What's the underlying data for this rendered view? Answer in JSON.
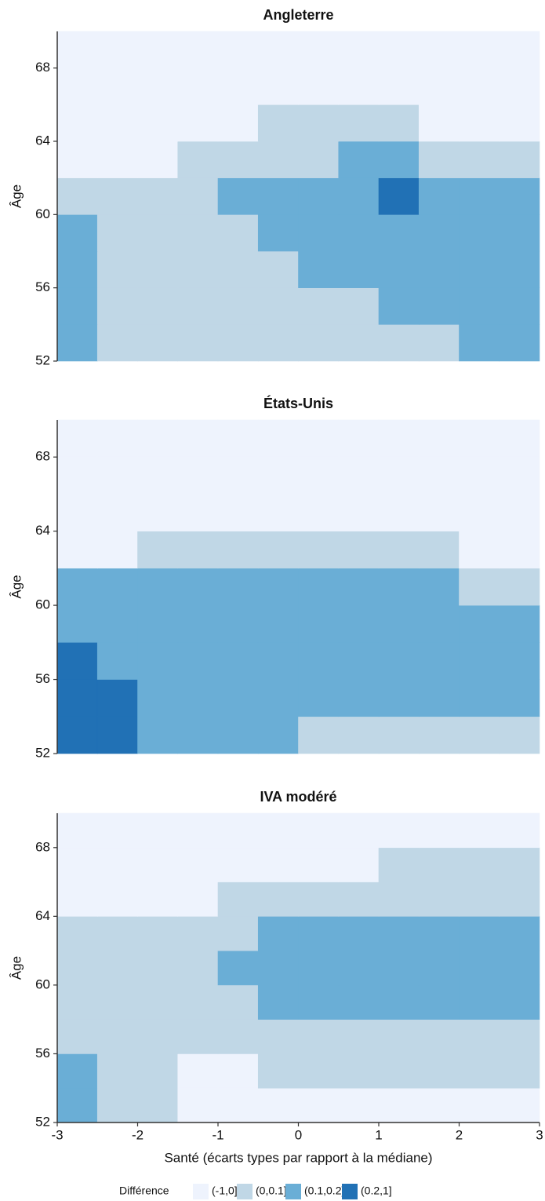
{
  "chart_data": [
    {
      "type": "heatmap",
      "title": "Angleterre",
      "ylabel": "Âge",
      "x_bins": [
        -3,
        -2.5,
        -2,
        -1.5,
        -1,
        -0.5,
        0,
        0.5,
        1,
        1.5,
        2,
        2.5,
        3
      ],
      "y_bins": [
        52,
        54,
        56,
        58,
        60,
        62,
        64,
        66,
        68,
        70
      ],
      "xlim": [
        -3,
        3
      ],
      "ylim": [
        52,
        70
      ],
      "yticks": [
        52,
        56,
        60,
        64,
        68
      ],
      "z": [
        [
          2,
          1,
          1,
          1,
          1,
          1,
          1,
          1,
          1,
          1,
          2,
          2
        ],
        [
          2,
          1,
          1,
          1,
          1,
          1,
          1,
          1,
          2,
          2,
          2,
          2
        ],
        [
          2,
          1,
          1,
          1,
          1,
          1,
          2,
          2,
          2,
          2,
          2,
          2
        ],
        [
          2,
          1,
          1,
          1,
          1,
          2,
          2,
          2,
          2,
          2,
          2,
          2
        ],
        [
          1,
          1,
          1,
          1,
          2,
          2,
          2,
          2,
          3,
          2,
          2,
          2
        ],
        [
          0,
          0,
          0,
          1,
          1,
          1,
          1,
          2,
          2,
          1,
          1,
          1
        ],
        [
          0,
          0,
          0,
          0,
          0,
          1,
          1,
          1,
          1,
          0,
          0,
          0
        ],
        [
          0,
          0,
          0,
          0,
          0,
          0,
          0,
          0,
          0,
          0,
          0,
          0
        ],
        [
          0,
          0,
          0,
          0,
          0,
          0,
          0,
          0,
          0,
          0,
          0,
          0
        ]
      ]
    },
    {
      "type": "heatmap",
      "title": "États-Unis",
      "ylabel": "Âge",
      "x_bins": [
        -3,
        -2.5,
        -2,
        -1.5,
        -1,
        -0.5,
        0,
        0.5,
        1,
        1.5,
        2,
        2.5,
        3
      ],
      "y_bins": [
        52,
        54,
        56,
        58,
        60,
        62,
        64,
        66,
        68,
        70
      ],
      "xlim": [
        -3,
        3
      ],
      "ylim": [
        52,
        70
      ],
      "yticks": [
        52,
        56,
        60,
        64,
        68
      ],
      "z": [
        [
          3,
          3,
          2,
          2,
          2,
          2,
          1,
          1,
          1,
          1,
          1,
          1
        ],
        [
          3,
          3,
          2,
          2,
          2,
          2,
          2,
          2,
          2,
          2,
          2,
          2
        ],
        [
          3,
          2,
          2,
          2,
          2,
          2,
          2,
          2,
          2,
          2,
          2,
          2
        ],
        [
          2,
          2,
          2,
          2,
          2,
          2,
          2,
          2,
          2,
          2,
          2,
          2
        ],
        [
          2,
          2,
          2,
          2,
          2,
          2,
          2,
          2,
          2,
          2,
          1,
          1
        ],
        [
          0,
          0,
          1,
          1,
          1,
          1,
          1,
          1,
          1,
          1,
          0,
          0
        ],
        [
          0,
          0,
          0,
          0,
          0,
          0,
          0,
          0,
          0,
          0,
          0,
          0
        ],
        [
          0,
          0,
          0,
          0,
          0,
          0,
          0,
          0,
          0,
          0,
          0,
          0
        ],
        [
          0,
          0,
          0,
          0,
          0,
          0,
          0,
          0,
          0,
          0,
          0,
          0
        ]
      ]
    },
    {
      "type": "heatmap",
      "title": "IVA modéré",
      "ylabel": "Âge",
      "xlabel": "Santé (écarts types par rapport à la médiane)",
      "x_bins": [
        -3,
        -2.5,
        -2,
        -1.5,
        -1,
        -0.5,
        0,
        0.5,
        1,
        1.5,
        2,
        2.5,
        3
      ],
      "y_bins": [
        52,
        54,
        56,
        58,
        60,
        62,
        64,
        66,
        68,
        70
      ],
      "xlim": [
        -3,
        3
      ],
      "ylim": [
        52,
        70
      ],
      "xticks": [
        -3,
        -2,
        -1,
        0,
        1,
        2,
        3
      ],
      "yticks": [
        52,
        56,
        60,
        64,
        68
      ],
      "z": [
        [
          2,
          1,
          1,
          0,
          0,
          0,
          0,
          0,
          0,
          0,
          0,
          0
        ],
        [
          2,
          1,
          1,
          0,
          0,
          1,
          1,
          1,
          1,
          1,
          1,
          1
        ],
        [
          1,
          1,
          1,
          1,
          1,
          1,
          1,
          1,
          1,
          1,
          1,
          1
        ],
        [
          1,
          1,
          1,
          1,
          1,
          2,
          2,
          2,
          2,
          2,
          2,
          2
        ],
        [
          1,
          1,
          1,
          1,
          2,
          2,
          2,
          2,
          2,
          2,
          2,
          2
        ],
        [
          1,
          1,
          1,
          1,
          1,
          2,
          2,
          2,
          2,
          2,
          2,
          2
        ],
        [
          0,
          0,
          0,
          0,
          1,
          1,
          1,
          1,
          1,
          1,
          1,
          1
        ],
        [
          0,
          0,
          0,
          0,
          0,
          0,
          0,
          0,
          1,
          1,
          1,
          1
        ],
        [
          0,
          0,
          0,
          0,
          0,
          0,
          0,
          0,
          0,
          0,
          0,
          0
        ]
      ]
    }
  ],
  "legend": {
    "title": "Différence",
    "levels": [
      {
        "label": "(-1,0]",
        "color": "#eef3fd"
      },
      {
        "label": "(0,0.1]",
        "color": "#c0d7e6"
      },
      {
        "label": "(0.1,0.2]",
        "color": "#6aaed6"
      },
      {
        "label": "(0.2,1]",
        "color": "#2171b5"
      }
    ]
  }
}
